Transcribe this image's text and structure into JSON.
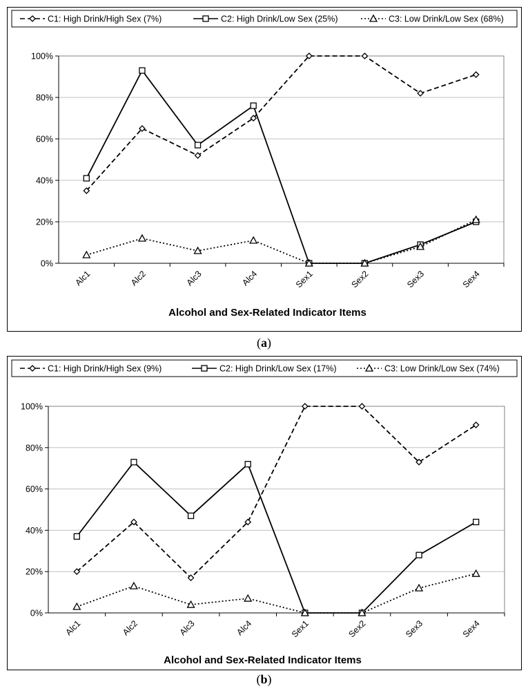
{
  "chart_data": [
    {
      "type": "line",
      "panel": "a",
      "caption": "(a)",
      "caption_letter": "a",
      "legend": [
        "C1: High Drink/High Sex (7%)",
        "C2: High Drink/Low Sex (25%)",
        "C3: Low Drink/Low Sex (68%)"
      ],
      "xlabel": "Alcohol and Sex-Related Indicator Items",
      "ylabel": "",
      "categories": [
        "Alc1",
        "Alc2",
        "Alc3",
        "Alc4",
        "Sex1",
        "Sex2",
        "Sex3",
        "Sex4"
      ],
      "yticks": [
        "0%",
        "20%",
        "40%",
        "60%",
        "80%",
        "100%"
      ],
      "ylim": [
        0,
        100
      ],
      "grid": true,
      "series": [
        {
          "name": "C1: High Drink/High Sex (7%)",
          "style": "dashed",
          "marker": "diamond",
          "values": [
            35,
            65,
            52,
            70,
            100,
            100,
            82,
            91
          ]
        },
        {
          "name": "C2: High Drink/Low Sex (25%)",
          "style": "solid",
          "marker": "square",
          "values": [
            41,
            93,
            57,
            76,
            0,
            0,
            9,
            20
          ]
        },
        {
          "name": "C3: Low Drink/Low Sex (68%)",
          "style": "dotted",
          "marker": "triangle",
          "values": [
            4,
            12,
            6,
            11,
            0,
            0,
            8,
            21
          ]
        }
      ]
    },
    {
      "type": "line",
      "panel": "b",
      "caption": "(b)",
      "caption_letter": "b",
      "legend": [
        "C1: High Drink/High Sex (9%)",
        "C2: High Drink/Low Sex (17%)",
        "C3: Low Drink/Low Sex (74%)"
      ],
      "xlabel": "Alcohol and Sex-Related Indicator Items",
      "ylabel": "",
      "categories": [
        "Alc1",
        "Alc2",
        "Alc3",
        "Alc4",
        "Sex1",
        "Sex2",
        "Sex3",
        "Sex4"
      ],
      "yticks": [
        "0%",
        "20%",
        "40%",
        "60%",
        "80%",
        "100%"
      ],
      "ylim": [
        0,
        100
      ],
      "grid": true,
      "series": [
        {
          "name": "C1: High Drink/High Sex (9%)",
          "style": "dashed",
          "marker": "diamond",
          "values": [
            20,
            44,
            17,
            44,
            100,
            100,
            73,
            91
          ]
        },
        {
          "name": "C2: High Drink/Low Sex (17%)",
          "style": "solid",
          "marker": "square",
          "values": [
            37,
            73,
            47,
            72,
            0,
            0,
            28,
            44
          ]
        },
        {
          "name": "C3: Low Drink/Low Sex (74%)",
          "style": "dotted",
          "marker": "triangle",
          "values": [
            3,
            13,
            4,
            7,
            0,
            0,
            12,
            19
          ]
        }
      ]
    }
  ],
  "colors": {
    "line": "#000000",
    "grid": "#c0c0c0",
    "frame": "#808080"
  }
}
